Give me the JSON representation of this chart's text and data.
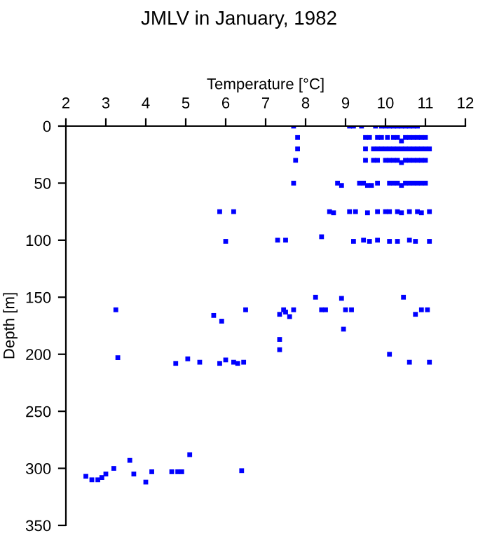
{
  "chart_data": {
    "type": "scatter",
    "title": "JMLV in January, 1982",
    "xlabel": "Temperature [°C]",
    "ylabel": "Depth [m]",
    "xlim": [
      2,
      12
    ],
    "xticks": [
      2,
      3,
      4,
      5,
      6,
      7,
      8,
      9,
      10,
      11,
      12
    ],
    "ylim": [
      350,
      0
    ],
    "yticks": [
      0,
      50,
      100,
      150,
      200,
      250,
      300,
      350
    ],
    "grid": false,
    "marker": "square",
    "series": [
      {
        "color": "#0000ff",
        "x": [
          7.7,
          9.1,
          9.2,
          9.4,
          9.75,
          9.9,
          10.0,
          10.1,
          10.2,
          10.3,
          10.4,
          10.5,
          10.6,
          10.7,
          10.8,
          7.8,
          9.5,
          9.6,
          9.8,
          9.9,
          10.05,
          10.2,
          10.3,
          10.4,
          10.5,
          10.6,
          10.7,
          10.8,
          10.9,
          11.0,
          7.8,
          9.5,
          9.7,
          9.8,
          9.9,
          10.0,
          10.1,
          10.2,
          10.3,
          10.4,
          10.5,
          10.6,
          10.7,
          10.8,
          10.9,
          11.0,
          11.1,
          7.75,
          9.5,
          9.7,
          9.8,
          10.0,
          10.1,
          10.2,
          10.3,
          10.4,
          10.5,
          10.6,
          10.7,
          10.8,
          10.9,
          11.0,
          7.7,
          8.8,
          8.9,
          9.35,
          9.45,
          9.55,
          9.65,
          9.8,
          10.1,
          10.2,
          10.3,
          10.4,
          10.5,
          10.6,
          10.7,
          10.8,
          10.9,
          11.0,
          5.85,
          6.2,
          8.6,
          8.7,
          9.1,
          9.25,
          9.55,
          9.8,
          10.0,
          10.1,
          10.3,
          10.4,
          10.6,
          10.8,
          10.9,
          11.1,
          6.0,
          7.3,
          7.5,
          8.4,
          9.2,
          9.45,
          9.6,
          9.8,
          10.1,
          10.3,
          10.6,
          10.75,
          11.1,
          8.25,
          8.9,
          10.45,
          3.25,
          6.5,
          7.45,
          7.7,
          8.4,
          8.5,
          9.0,
          9.15,
          10.9,
          5.7,
          5.9,
          7.35,
          7.5,
          7.6,
          10.75,
          11.05,
          8.95,
          3.3,
          4.75,
          5.05,
          5.35,
          5.85,
          6.0,
          6.2,
          6.3,
          6.45,
          7.35,
          7.35,
          10.1,
          10.6,
          11.1,
          2.5,
          2.65,
          2.8,
          2.9,
          3.0,
          3.2,
          3.6,
          3.7,
          4.0,
          4.15,
          4.65,
          4.8,
          4.9,
          5.1,
          6.4
        ],
        "values": [
          0,
          0,
          0,
          0,
          0,
          0,
          0,
          0,
          0,
          0,
          0,
          0,
          0,
          0,
          0,
          10,
          10,
          10,
          10,
          10,
          10,
          10,
          10,
          13,
          10,
          10,
          10,
          10,
          10,
          10,
          20,
          20,
          20,
          20,
          20,
          20,
          20,
          20,
          20,
          20,
          20,
          20,
          20,
          20,
          20,
          20,
          20,
          30,
          30,
          30,
          30,
          30,
          30,
          30,
          30,
          32,
          30,
          30,
          30,
          30,
          30,
          30,
          50,
          50,
          52,
          50,
          50,
          52,
          52,
          50,
          50,
          50,
          50,
          52,
          50,
          50,
          50,
          50,
          50,
          50,
          75,
          75,
          75,
          76,
          75,
          75,
          76,
          75,
          75,
          75,
          75,
          76,
          75,
          75,
          76,
          75,
          101,
          100,
          100,
          97,
          101,
          100,
          101,
          100,
          101,
          101,
          100,
          101,
          101,
          150,
          151,
          150,
          161,
          161,
          161,
          161,
          161,
          161,
          161,
          161,
          161,
          166,
          171,
          165,
          163,
          167,
          165,
          161,
          178,
          203,
          208,
          204,
          207,
          208,
          205,
          207,
          208,
          207,
          196,
          187,
          200,
          207,
          207,
          307,
          310,
          310,
          308,
          305,
          300,
          293,
          305,
          312,
          303,
          303,
          303,
          303,
          288,
          302
        ]
      }
    ]
  }
}
